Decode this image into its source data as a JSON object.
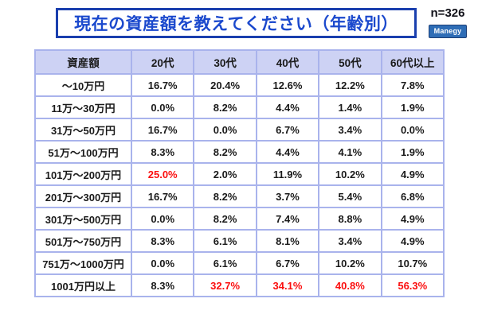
{
  "header": {
    "title": "現在の資産額を教えてください（年齢別）",
    "sample_label": "n=326",
    "logo_label": "Manegy"
  },
  "colors": {
    "title_text": "#1b49cd",
    "title_border": "#1a3fae",
    "table_border": "#a9b3ec",
    "header_bg": "#cdd2f4",
    "body_text": "#1a1a1a",
    "highlight_red": "#fb0f0f",
    "logo_bg": "#2e6db6",
    "logo_border": "#1d3f77",
    "page_bg": "#ffffff"
  },
  "chart_data": {
    "type": "table",
    "title": "現在の資産額を教えてください（年齢別）",
    "sample_size": 326,
    "columns": [
      "資産額",
      "20代",
      "30代",
      "40代",
      "50代",
      "60代以上"
    ],
    "rows": [
      {
        "label": "～10万円",
        "values": [
          "16.7%",
          "20.4%",
          "12.6%",
          "12.2%",
          "7.8%"
        ],
        "red": [
          false,
          false,
          false,
          false,
          false
        ]
      },
      {
        "label": "11万～30万円",
        "values": [
          "0.0%",
          "8.2%",
          "4.4%",
          "1.4%",
          "1.9%"
        ],
        "red": [
          false,
          false,
          false,
          false,
          false
        ]
      },
      {
        "label": "31万～50万円",
        "values": [
          "16.7%",
          "0.0%",
          "6.7%",
          "3.4%",
          "0.0%"
        ],
        "red": [
          false,
          false,
          false,
          false,
          false
        ]
      },
      {
        "label": "51万～100万円",
        "values": [
          "8.3%",
          "8.2%",
          "4.4%",
          "4.1%",
          "1.9%"
        ],
        "red": [
          false,
          false,
          false,
          false,
          false
        ]
      },
      {
        "label": "101万～200万円",
        "values": [
          "25.0%",
          "2.0%",
          "11.9%",
          "10.2%",
          "4.9%"
        ],
        "red": [
          true,
          false,
          false,
          false,
          false
        ]
      },
      {
        "label": "201万～300万円",
        "values": [
          "16.7%",
          "8.2%",
          "3.7%",
          "5.4%",
          "6.8%"
        ],
        "red": [
          false,
          false,
          false,
          false,
          false
        ]
      },
      {
        "label": "301万～500万円",
        "values": [
          "0.0%",
          "8.2%",
          "7.4%",
          "8.8%",
          "4.9%"
        ],
        "red": [
          false,
          false,
          false,
          false,
          false
        ]
      },
      {
        "label": "501万～750万円",
        "values": [
          "8.3%",
          "6.1%",
          "8.1%",
          "3.4%",
          "4.9%"
        ],
        "red": [
          false,
          false,
          false,
          false,
          false
        ]
      },
      {
        "label": "751万～1000万円",
        "values": [
          "0.0%",
          "6.1%",
          "6.7%",
          "10.2%",
          "10.7%"
        ],
        "red": [
          false,
          false,
          false,
          false,
          false
        ]
      },
      {
        "label": "1001万円以上",
        "values": [
          "8.3%",
          "32.7%",
          "34.1%",
          "40.8%",
          "56.3%"
        ],
        "red": [
          false,
          true,
          true,
          true,
          true
        ]
      }
    ]
  }
}
